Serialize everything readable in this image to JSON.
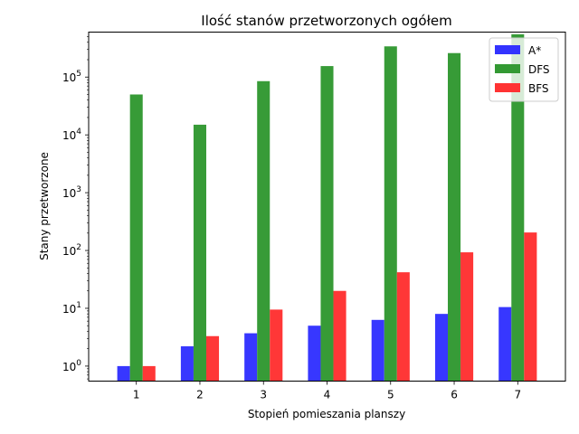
{
  "chart_data": {
    "type": "bar",
    "title": "Ilość stanów przetworzonych ogółem",
    "xlabel": "Stopień pomieszania planszy",
    "ylabel": "Stany przetworzone",
    "yscale": "log",
    "ylim": [
      0.55,
      600000
    ],
    "xlim": [
      0.25,
      7.75
    ],
    "categories": [
      "1",
      "2",
      "3",
      "4",
      "5",
      "6",
      "7"
    ],
    "x": [
      1,
      2,
      3,
      4,
      5,
      6,
      7
    ],
    "yticks": [
      {
        "value": 1,
        "base": "10",
        "exp": "0"
      },
      {
        "value": 10,
        "base": "10",
        "exp": "1"
      },
      {
        "value": 100,
        "base": "10",
        "exp": "2"
      },
      {
        "value": 1000,
        "base": "10",
        "exp": "3"
      },
      {
        "value": 10000,
        "base": "10",
        "exp": "4"
      },
      {
        "value": 100000,
        "base": "10",
        "exp": "5"
      }
    ],
    "series": [
      {
        "name": "A*",
        "color": "#3333ff",
        "values": [
          1,
          2.2,
          3.7,
          5,
          6.3,
          8,
          10.5
        ]
      },
      {
        "name": "DFS",
        "color": "#339933",
        "values": [
          50000,
          15000,
          85000,
          155000,
          340000,
          260000,
          550000
        ]
      },
      {
        "name": "BFS",
        "color": "#ff3333",
        "values": [
          1,
          3.3,
          9.5,
          20,
          42,
          93,
          205
        ]
      }
    ],
    "legend_position": "top-right"
  }
}
